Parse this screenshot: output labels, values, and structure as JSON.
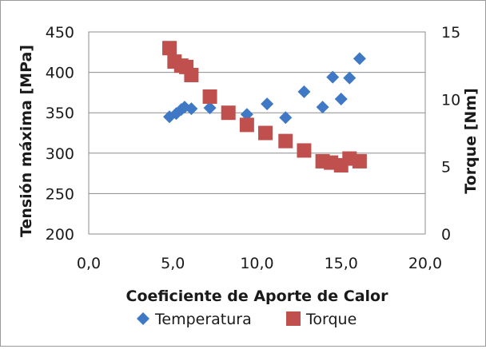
{
  "chart_data": {
    "type": "scatter",
    "xlabel": "Coeficiente de Aporte de Calor",
    "ylabel_left": "Tensión máxima [MPa]",
    "ylabel_right": "Torque [Nm]",
    "xlim": [
      0,
      20
    ],
    "ylim_left": [
      200,
      450
    ],
    "ylim_right": [
      0,
      15
    ],
    "x_ticks": [
      "0,0",
      "5,0",
      "10,0",
      "15,0",
      "20,0"
    ],
    "y_left_ticks": [
      "200",
      "250",
      "300",
      "350",
      "400",
      "450"
    ],
    "y_right_ticks": [
      "0",
      "5",
      "10",
      "15"
    ],
    "grid": "horizontal",
    "legend_position": "bottom",
    "series": [
      {
        "name": "Temperatura",
        "axis": "left",
        "marker": "diamond",
        "color": "#3f79c6",
        "points": [
          {
            "x": 4.8,
            "y": 345
          },
          {
            "x": 5.2,
            "y": 349
          },
          {
            "x": 5.5,
            "y": 354
          },
          {
            "x": 5.7,
            "y": 357
          },
          {
            "x": 6.1,
            "y": 355
          },
          {
            "x": 7.2,
            "y": 356
          },
          {
            "x": 9.4,
            "y": 348
          },
          {
            "x": 10.6,
            "y": 361
          },
          {
            "x": 11.7,
            "y": 344
          },
          {
            "x": 12.8,
            "y": 376
          },
          {
            "x": 13.9,
            "y": 357
          },
          {
            "x": 14.5,
            "y": 394
          },
          {
            "x": 15.0,
            "y": 367
          },
          {
            "x": 15.5,
            "y": 393
          },
          {
            "x": 16.1,
            "y": 417
          }
        ]
      },
      {
        "name": "Torque",
        "axis": "right",
        "marker": "square",
        "color": "#c0504d",
        "points": [
          {
            "x": 4.8,
            "y": 13.8
          },
          {
            "x": 5.1,
            "y": 12.8
          },
          {
            "x": 5.5,
            "y": 12.5
          },
          {
            "x": 5.8,
            "y": 12.4
          },
          {
            "x": 6.1,
            "y": 11.8
          },
          {
            "x": 7.2,
            "y": 10.2
          },
          {
            "x": 8.3,
            "y": 9.0
          },
          {
            "x": 9.4,
            "y": 8.1
          },
          {
            "x": 10.5,
            "y": 7.5
          },
          {
            "x": 11.7,
            "y": 6.9
          },
          {
            "x": 12.8,
            "y": 6.2
          },
          {
            "x": 13.9,
            "y": 5.4
          },
          {
            "x": 14.4,
            "y": 5.3
          },
          {
            "x": 15.0,
            "y": 5.1
          },
          {
            "x": 15.5,
            "y": 5.6
          },
          {
            "x": 16.1,
            "y": 5.4
          }
        ]
      }
    ]
  }
}
